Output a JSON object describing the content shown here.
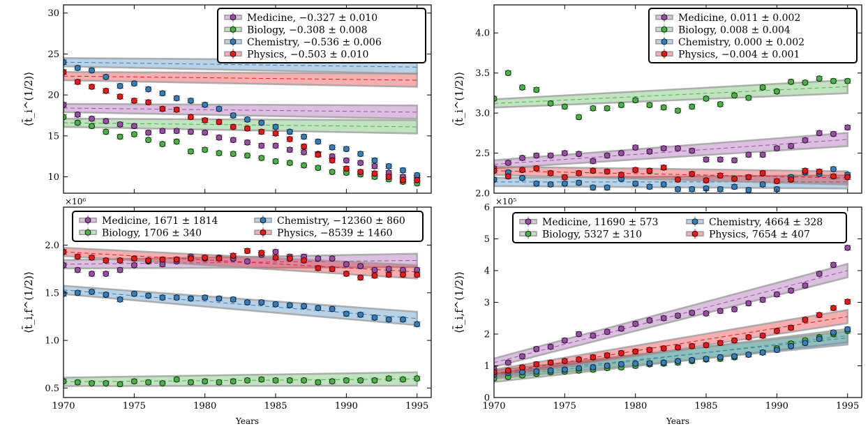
{
  "colors": {
    "Medicine": "#984ea3",
    "Biology": "#4daf4a",
    "Chemistry": "#377eb8",
    "Physics": "#e41a1c",
    "band": "#9a9a9a"
  },
  "chart_data": [
    {
      "type": "scatter",
      "panel": "top-left",
      "ylabel": "⟨t̄_i^(1/2)⟩",
      "xlim": [
        1970,
        1996
      ],
      "ylim": [
        8,
        31
      ],
      "xticks": [
        1970,
        1975,
        1980,
        1985,
        1990,
        1995
      ],
      "yticks": [
        10,
        15,
        20,
        25,
        30
      ],
      "show_xticklabels": false,
      "legend": {
        "placement": "top-right",
        "columns": 1
      },
      "series": [
        {
          "name": "Medicine",
          "label": "Medicine, −0.327 ± 0.010",
          "values": [
            18.8,
            17.6,
            17.1,
            16.8,
            16.4,
            16.2,
            15.4,
            15.6,
            15.6,
            15.5,
            15.4,
            14.8,
            14.5,
            14.2,
            13.8,
            13.8,
            13.3,
            13.0,
            12.8,
            12.5,
            12.0,
            11.7,
            11.3,
            10.5,
            10.0,
            9.9
          ],
          "fit": [
            18.4,
            17.9
          ]
        },
        {
          "name": "Biology",
          "label": "Biology, −0.308 ± 0.008",
          "values": [
            17.3,
            16.6,
            16.2,
            15.5,
            14.9,
            15.2,
            14.5,
            14.0,
            14.3,
            13.1,
            13.3,
            12.9,
            12.8,
            12.6,
            12.3,
            11.9,
            11.7,
            11.4,
            11.1,
            10.6,
            10.5,
            10.3,
            10.0,
            9.7,
            9.4,
            9.2
          ],
          "fit": [
            16.6,
            16.1
          ]
        },
        {
          "name": "Chemistry",
          "label": "Chemistry, −0.536 ± 0.006",
          "values": [
            24.0,
            23.3,
            23.0,
            22.2,
            21.1,
            21.4,
            20.7,
            20.2,
            19.6,
            19.3,
            18.8,
            18.3,
            17.5,
            17.0,
            16.6,
            16.1,
            15.5,
            14.9,
            14.3,
            13.6,
            13.4,
            12.8,
            12.0,
            11.3,
            10.8,
            10.2
          ],
          "fit": [
            24.0,
            23.4
          ]
        },
        {
          "name": "Physics",
          "label": "Physics, −0.503 ± 0.010",
          "values": [
            22.8,
            21.6,
            21.0,
            20.5,
            19.8,
            19.3,
            19.1,
            18.3,
            18.2,
            17.3,
            16.9,
            16.7,
            16.1,
            15.9,
            15.5,
            15.3,
            14.6,
            13.7,
            12.7,
            12.0,
            11.0,
            10.6,
            10.4,
            10.0,
            9.6,
            9.6
          ],
          "fit": [
            22.3,
            21.8
          ]
        }
      ]
    },
    {
      "type": "scatter",
      "panel": "top-right",
      "ylabel": "⟨t̄_i^(1/2)⟩",
      "xlim": [
        1970,
        1996
      ],
      "ylim": [
        2.0,
        4.35
      ],
      "xticks": [
        1970,
        1975,
        1980,
        1985,
        1990,
        1995
      ],
      "yticks": [
        2.0,
        2.5,
        3.0,
        3.5,
        4.0
      ],
      "show_xticklabels": false,
      "legend": {
        "placement": "top-right",
        "columns": 1
      },
      "series": [
        {
          "name": "Medicine",
          "label": "Medicine, 0.011 ± 0.002",
          "values": [
            2.31,
            2.38,
            2.44,
            2.47,
            2.47,
            2.5,
            2.49,
            2.4,
            2.47,
            2.5,
            2.57,
            2.52,
            2.56,
            2.56,
            2.53,
            2.42,
            2.42,
            2.41,
            2.48,
            2.48,
            2.56,
            2.59,
            2.66,
            2.75,
            2.74,
            2.82
          ],
          "fit": [
            2.36,
            2.67
          ]
        },
        {
          "name": "Biology",
          "label": "Biology, 0.008 ± 0.004",
          "values": [
            3.18,
            3.5,
            3.32,
            3.29,
            3.12,
            3.08,
            2.95,
            3.06,
            3.06,
            3.1,
            3.16,
            3.1,
            3.07,
            3.03,
            3.08,
            3.18,
            3.11,
            3.22,
            3.19,
            3.32,
            3.27,
            3.39,
            3.38,
            3.43,
            3.4,
            3.4
          ],
          "fit": [
            3.12,
            3.33
          ]
        },
        {
          "name": "Chemistry",
          "label": "Chemistry, 0.000 ± 0.002",
          "values": [
            2.17,
            2.26,
            2.19,
            2.12,
            2.11,
            2.12,
            2.13,
            2.07,
            2.07,
            2.18,
            2.12,
            2.08,
            2.11,
            2.05,
            2.05,
            2.06,
            2.05,
            2.08,
            2.04,
            2.11,
            2.05,
            2.2,
            2.26,
            2.24,
            2.3,
            2.23
          ],
          "fit": [
            2.14,
            2.14
          ]
        },
        {
          "name": "Physics",
          "label": "Physics, −0.004 ± 0.001",
          "values": [
            2.28,
            2.21,
            2.29,
            2.31,
            2.25,
            2.2,
            2.25,
            2.28,
            2.27,
            2.23,
            2.29,
            2.28,
            2.32,
            2.17,
            2.24,
            2.16,
            2.22,
            2.18,
            2.2,
            2.25,
            2.15,
            2.17,
            2.28,
            2.27,
            2.21,
            2.2
          ],
          "fit": [
            2.28,
            2.19
          ]
        }
      ]
    },
    {
      "type": "scatter",
      "panel": "bottom-left",
      "ylabel": "⟨t̄_i,f^(1/2)⟩",
      "y_multiplier": "×10⁶",
      "xlabel": "Years",
      "xlim": [
        1970,
        1996
      ],
      "ylim": [
        0.4,
        2.4
      ],
      "xticks": [
        1970,
        1975,
        1980,
        1985,
        1990,
        1995
      ],
      "yticks": [
        0.5,
        1.0,
        1.5,
        2.0
      ],
      "show_xticklabels": true,
      "legend": {
        "placement": "top-center",
        "columns": 2
      },
      "series": [
        {
          "name": "Medicine",
          "label": "Medicine, 1671 ± 1814",
          "values": [
            1.79,
            1.74,
            1.7,
            1.7,
            1.74,
            1.79,
            1.83,
            1.8,
            1.83,
            1.88,
            1.86,
            1.87,
            1.86,
            1.83,
            1.9,
            1.93,
            1.88,
            1.88,
            1.86,
            1.86,
            1.8,
            1.78,
            1.74,
            1.75,
            1.74,
            1.74
          ],
          "fit": [
            1.8,
            1.84
          ]
        },
        {
          "name": "Biology",
          "label": "Biology, 1706 ± 340",
          "values": [
            0.57,
            0.56,
            0.55,
            0.55,
            0.54,
            0.57,
            0.56,
            0.55,
            0.59,
            0.56,
            0.57,
            0.56,
            0.57,
            0.58,
            0.59,
            0.58,
            0.58,
            0.58,
            0.56,
            0.57,
            0.58,
            0.58,
            0.58,
            0.6,
            0.59,
            0.6
          ],
          "fit": [
            0.565,
            0.595
          ]
        },
        {
          "name": "Chemistry",
          "label": "Chemistry, −12360 ± 860",
          "values": [
            1.49,
            1.5,
            1.51,
            1.48,
            1.43,
            1.49,
            1.47,
            1.45,
            1.45,
            1.44,
            1.45,
            1.44,
            1.43,
            1.4,
            1.4,
            1.38,
            1.37,
            1.36,
            1.34,
            1.33,
            1.28,
            1.27,
            1.24,
            1.22,
            1.22,
            1.17
          ],
          "fit": [
            1.53,
            1.23
          ]
        },
        {
          "name": "Physics",
          "label": "Physics, −8539 ± 1460",
          "values": [
            1.93,
            1.88,
            1.87,
            1.84,
            1.84,
            1.86,
            1.84,
            1.85,
            1.85,
            1.86,
            1.87,
            1.86,
            1.89,
            1.94,
            1.92,
            1.87,
            1.86,
            1.84,
            1.76,
            1.75,
            1.7,
            1.66,
            1.68,
            1.69,
            1.69,
            1.69
          ],
          "fit": [
            1.93,
            1.72
          ]
        }
      ]
    },
    {
      "type": "scatter",
      "panel": "bottom-right",
      "ylabel": "⟨t̄_i,f^(1/2)⟩",
      "y_multiplier": "×10⁵",
      "xlabel": "Years",
      "xlim": [
        1970,
        1996
      ],
      "ylim": [
        0,
        6
      ],
      "xticks": [
        1970,
        1975,
        1980,
        1985,
        1990,
        1995
      ],
      "yticks": [
        0,
        1,
        2,
        3,
        4,
        5,
        6
      ],
      "show_xticklabels": true,
      "legend": {
        "placement": "top-center",
        "columns": 2
      },
      "series": [
        {
          "name": "Medicine",
          "label": "Medicine, 11690 ± 573",
          "values": [
            0.9,
            1.1,
            1.3,
            1.53,
            1.6,
            1.8,
            2.0,
            1.95,
            2.07,
            2.17,
            2.32,
            2.43,
            2.5,
            2.58,
            2.67,
            2.65,
            2.73,
            2.78,
            2.97,
            3.08,
            3.25,
            3.37,
            3.53,
            3.9,
            4.18,
            4.72
          ],
          "fit": [
            1.1,
            4.0
          ]
        },
        {
          "name": "Biology",
          "label": "Biology, 5327 ± 310",
          "values": [
            0.6,
            0.65,
            0.7,
            0.75,
            0.8,
            0.82,
            0.85,
            0.88,
            0.93,
            0.95,
            1.0,
            1.05,
            1.07,
            1.1,
            1.15,
            1.2,
            1.22,
            1.27,
            1.35,
            1.42,
            1.55,
            1.7,
            1.8,
            1.9,
            2.0,
            2.1
          ],
          "fit": [
            0.62,
            1.95
          ]
        },
        {
          "name": "Chemistry",
          "label": "Chemistry, 4664 ± 328",
          "values": [
            0.72,
            0.78,
            0.8,
            0.82,
            0.85,
            0.88,
            0.92,
            0.95,
            1.0,
            1.05,
            1.07,
            1.08,
            1.1,
            1.15,
            1.18,
            1.22,
            1.27,
            1.3,
            1.35,
            1.42,
            1.5,
            1.62,
            1.72,
            1.85,
            2.05,
            2.15
          ],
          "fit": [
            0.72,
            1.88
          ]
        },
        {
          "name": "Physics",
          "label": "Physics, 7654 ± 407",
          "values": [
            0.8,
            0.85,
            0.95,
            1.05,
            1.1,
            1.15,
            1.2,
            1.27,
            1.33,
            1.4,
            1.45,
            1.5,
            1.55,
            1.58,
            1.62,
            1.65,
            1.72,
            1.8,
            1.9,
            1.95,
            2.1,
            2.2,
            2.45,
            2.6,
            2.82,
            3.02
          ],
          "fit": [
            0.75,
            2.55
          ]
        }
      ]
    }
  ]
}
